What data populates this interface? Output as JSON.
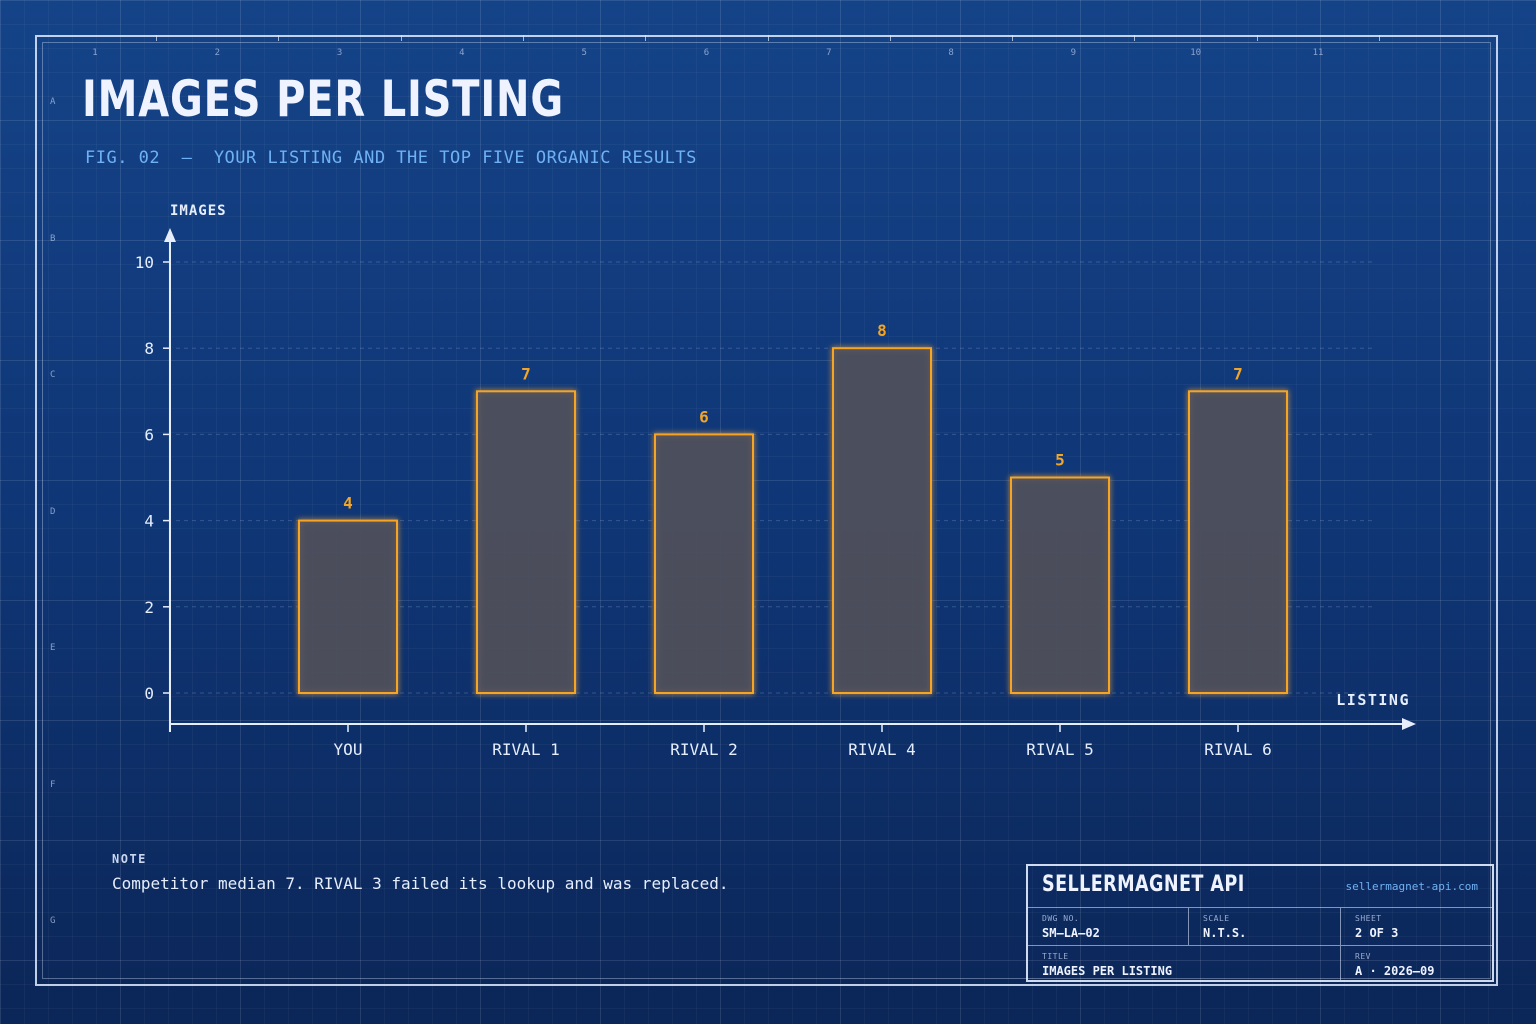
{
  "header": {
    "title": "IMAGES PER LISTING",
    "subtitle": "FIG. 02  —  YOUR LISTING AND THE TOP FIVE ORGANIC RESULTS"
  },
  "frame": {
    "column_zones": [
      "1",
      "2",
      "3",
      "4",
      "5",
      "6",
      "7",
      "8",
      "9",
      "10",
      "11"
    ],
    "row_zones": [
      "A",
      "B",
      "C",
      "D",
      "E",
      "F",
      "G"
    ]
  },
  "chart_data": {
    "type": "bar",
    "xlabel": "LISTING",
    "ylabel": "IMAGES",
    "categories": [
      "YOU",
      "RIVAL 1",
      "RIVAL 2",
      "RIVAL 4",
      "RIVAL 5",
      "RIVAL 6"
    ],
    "values": [
      4,
      7,
      6,
      8,
      5,
      7
    ],
    "ylim": [
      0,
      10
    ],
    "yticks": [
      0,
      2,
      4,
      6,
      8,
      10
    ],
    "grid": true,
    "data_labels": true,
    "colors": {
      "bar_stroke": "#f5a524",
      "bar_fill": "#4b4f5c",
      "label": "#f5a524",
      "axis": "#e6eefc"
    }
  },
  "note": {
    "label": "NOTE",
    "text": "Competitor median 7. RIVAL 3 failed its lookup and was replaced."
  },
  "title_block": {
    "brand": "SELLERMAGNET API",
    "url": "sellermagnet-api.com",
    "dwg_no_label": "DWG NO.",
    "dwg_no": "SM–LA–02",
    "scale_label": "SCALE",
    "scale": "N.T.S.",
    "sheet_label": "SHEET",
    "sheet": "2 OF 3",
    "title_label": "TITLE",
    "title": "IMAGES PER LISTING",
    "rev_label": "REV",
    "rev": "A · 2026–09"
  }
}
